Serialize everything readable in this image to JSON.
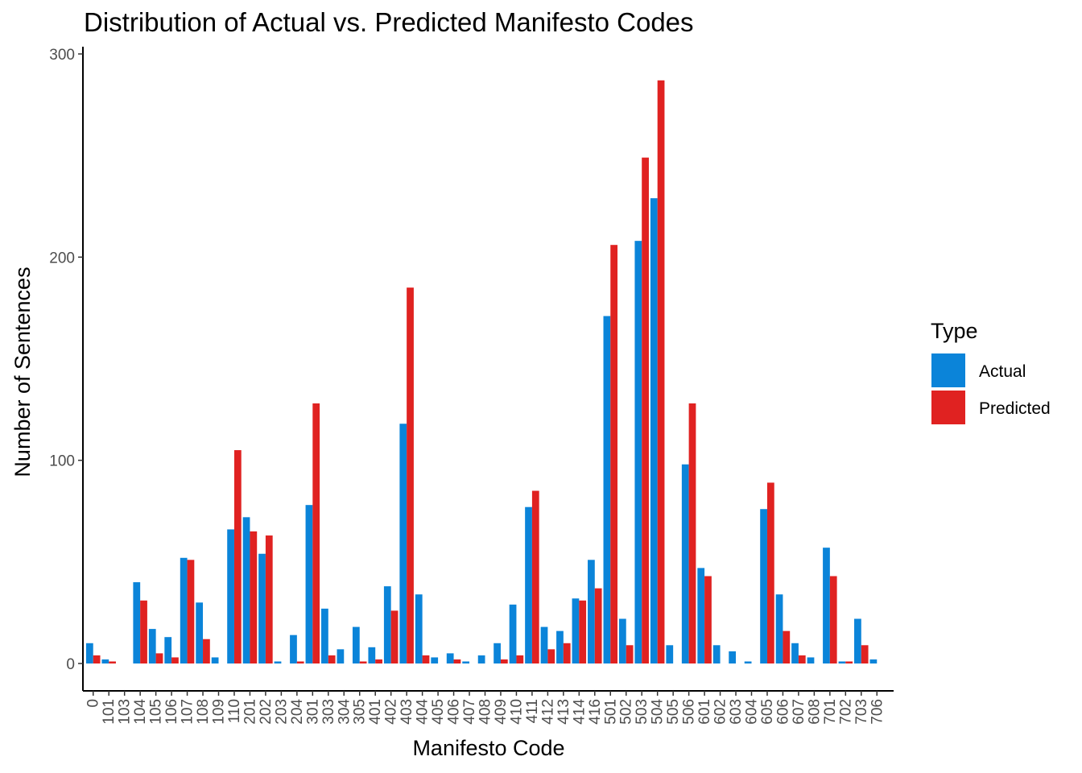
{
  "chart_data": {
    "type": "bar",
    "title": "Distribution of Actual vs. Predicted Manifesto Codes",
    "xlabel": "Manifesto Code",
    "ylabel": "Number of Sentences",
    "ylim": [
      0,
      300
    ],
    "yticks": [
      0,
      100,
      200,
      300
    ],
    "grid": false,
    "legend": {
      "title": "Type",
      "placement": "right"
    },
    "categories": [
      "0",
      "101",
      "103",
      "104",
      "105",
      "106",
      "107",
      "108",
      "109",
      "110",
      "201",
      "202",
      "203",
      "204",
      "301",
      "303",
      "304",
      "305",
      "401",
      "402",
      "403",
      "404",
      "405",
      "406",
      "407",
      "408",
      "409",
      "410",
      "411",
      "412",
      "413",
      "414",
      "416",
      "501",
      "502",
      "503",
      "504",
      "505",
      "506",
      "601",
      "602",
      "603",
      "604",
      "605",
      "606",
      "607",
      "608",
      "701",
      "702",
      "703",
      "706"
    ],
    "series": [
      {
        "name": "Actual",
        "color": "#0b84d9",
        "values": [
          10,
          2,
          0,
          40,
          17,
          13,
          52,
          30,
          3,
          66,
          72,
          54,
          1,
          14,
          78,
          27,
          7,
          18,
          8,
          38,
          118,
          34,
          3,
          5,
          1,
          4,
          10,
          29,
          77,
          18,
          16,
          32,
          51,
          171,
          22,
          208,
          229,
          9,
          98,
          47,
          9,
          6,
          1,
          76,
          34,
          10,
          3,
          57,
          1,
          22,
          2
        ]
      },
      {
        "name": "Predicted",
        "color": "#e02221",
        "values": [
          4,
          1,
          0,
          31,
          5,
          3,
          51,
          12,
          0,
          105,
          65,
          63,
          0,
          1,
          128,
          4,
          0,
          1,
          2,
          26,
          185,
          4,
          0,
          2,
          0,
          0,
          2,
          4,
          85,
          7,
          10,
          31,
          37,
          206,
          9,
          249,
          287,
          0,
          128,
          43,
          0,
          0,
          0,
          89,
          16,
          4,
          0,
          43,
          1,
          9,
          0
        ]
      }
    ]
  }
}
